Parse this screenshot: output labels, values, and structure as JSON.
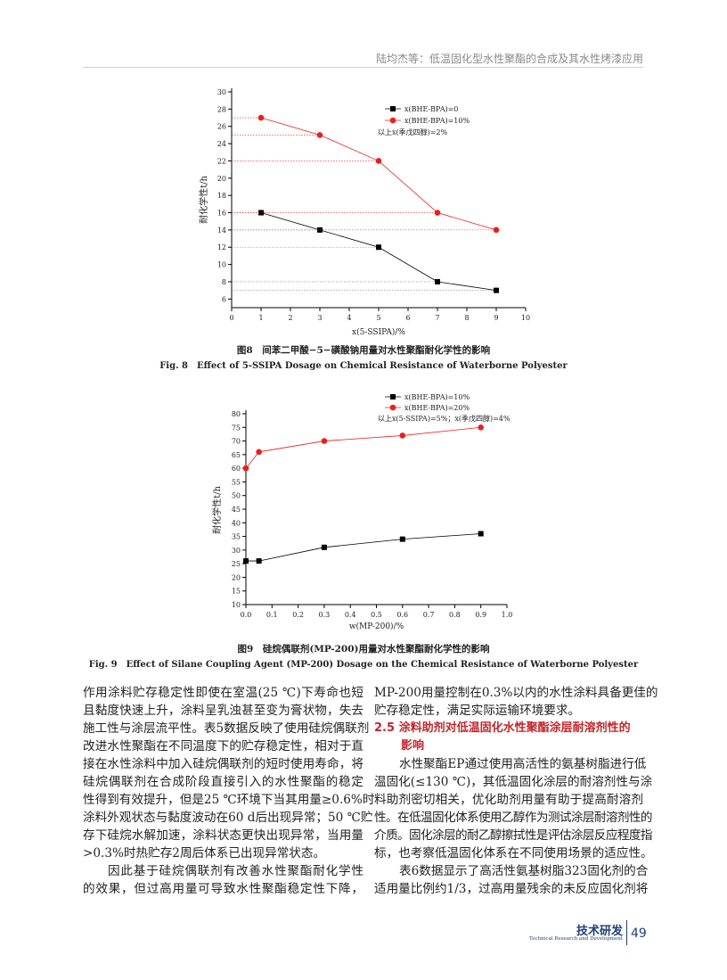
{
  "header": {
    "running_title": "陆均杰等：低温固化型水性聚酯的合成及其水性烤漆应用"
  },
  "chart_data": [
    {
      "type": "line",
      "caption_cn": "图8　间苯二甲酸−5−磺酸钠用量对水性聚酯耐化学性的影响",
      "caption_en": "Fig. 8　Effect of 5-SSIPA Dosage on Chemical Resistance of Waterborne Polyester",
      "x_label": "x(5-SSIPA)/%",
      "y_label": "耐化学性t/h",
      "x": [
        1,
        3,
        5,
        7,
        9
      ],
      "series": [
        {
          "name": "x(BHE-BPA)=0",
          "color": "#000000",
          "marker": "square",
          "values": [
            16,
            14,
            12,
            8,
            7
          ]
        },
        {
          "name": "x(BHE-BPA)=10%",
          "color": "#e8201c",
          "marker": "circle",
          "values": [
            27,
            25,
            22,
            16,
            14
          ]
        }
      ],
      "note": "以上x(季戊四醇)=2%",
      "xlim": [
        0,
        10
      ],
      "xticks": [
        0,
        1,
        2,
        3,
        4,
        5,
        6,
        7,
        8,
        9,
        10
      ],
      "ylim": [
        5,
        30
      ],
      "yticks": [
        6,
        8,
        10,
        12,
        14,
        16,
        18,
        20,
        22,
        24,
        26,
        28,
        30
      ],
      "guides": true
    },
    {
      "type": "line",
      "caption_cn": "图9　硅烷偶联剂(MP-200)用量对水性聚酯耐化学性的影响",
      "caption_en": "Fig. 9　Effect of Silane Coupling Agent (MP-200) Dosage on the Chemical Resistance of Waterborne Polyester",
      "x_label": "w(MP-200)/%",
      "y_label": "耐化学性t/h",
      "x": [
        0,
        0.05,
        0.3,
        0.6,
        0.9
      ],
      "series": [
        {
          "name": "x(BHE-BPA)=10%",
          "color": "#000000",
          "marker": "square",
          "values": [
            26,
            26,
            31,
            34,
            36
          ]
        },
        {
          "name": "x(BHE-BPA)=20%",
          "color": "#e8201c",
          "marker": "circle",
          "values": [
            60,
            66,
            70,
            72,
            75
          ]
        }
      ],
      "note": "以上x(5-SSIPA)=5%；x(季戊四醇)=4%",
      "xlim": [
        0,
        1
      ],
      "xticks": [
        {
          "value": 0,
          "label": "0.0"
        },
        0.1,
        0.2,
        0.3,
        0.4,
        0.5,
        0.6,
        0.7,
        0.8,
        0.9,
        {
          "value": 1,
          "label": "1.0"
        }
      ],
      "ylim": [
        10,
        80
      ],
      "yticks": [
        10,
        15,
        20,
        25,
        30,
        35,
        40,
        45,
        50,
        55,
        60,
        65,
        70,
        75,
        80
      ],
      "guides": false
    }
  ],
  "body": {
    "left": [
      "作用涂料贮存稳定性即使在室温(25 ℃)下寿命也短",
      "且黏度快速上升，涂料呈乳浊甚至变为膏状物，失去",
      "施工性与涂层流平性。表5数据反映了使用硅烷偶联剂",
      "改进水性聚酯在不同温度下的贮存稳定性，相对于直",
      "接在水性涂料中加入硅烷偶联剂的短时使用寿命，将",
      "硅烷偶联剂在合成阶段直接引入的水性聚酯的稳定",
      "性得到有效提升，但是25 ℃环境下当其用量≥0.6%时",
      "涂料外观状态与黏度波动在60 d后出现异常；50 ℃贮",
      "存下硅烷水解加速，涂料状态更快出现异常，当用量",
      "&gt;0.3%时热贮存2周后体系已出现异常状态。",
      "因此基于硅烷偶联剂有改善水性聚酯耐化学性",
      "的效果，但过高用量可导致水性聚酯稳定性下降，"
    ],
    "right": [
      "MP-200用量控制在0.3%以内的水性涂料具备更佳的",
      "贮存稳定性，满足实际运输环境要求。",
      "水性聚酯EP通过使用高活性的氨基树脂进行低",
      "温固化(≤130 ℃)，其低温固化涂层的耐溶剂性与涂",
      "料助剂密切相关，优化助剂用量有助于提高耐溶剂",
      "性。在低温固化体系使用乙醇作为测试涂层耐溶剂性的",
      "介质。固化涂层的耐乙醇擦拭性是评估涂层反应程度指",
      "标，也考察低温固化体系在不同使用场景的适应性。",
      "表6数据显示了高活性氨基树脂323固化剂的合",
      "适用量比例约1/3，过高用量残余的未反应固化剂将"
    ],
    "section_number": "2.5",
    "section_title": [
      "涂料助剂对低温固化水性聚酯涂层耐溶剂性的",
      "影响"
    ]
  },
  "footer": {
    "section": "技术研发",
    "section_en": "Technical Research and Development",
    "page": "49"
  }
}
